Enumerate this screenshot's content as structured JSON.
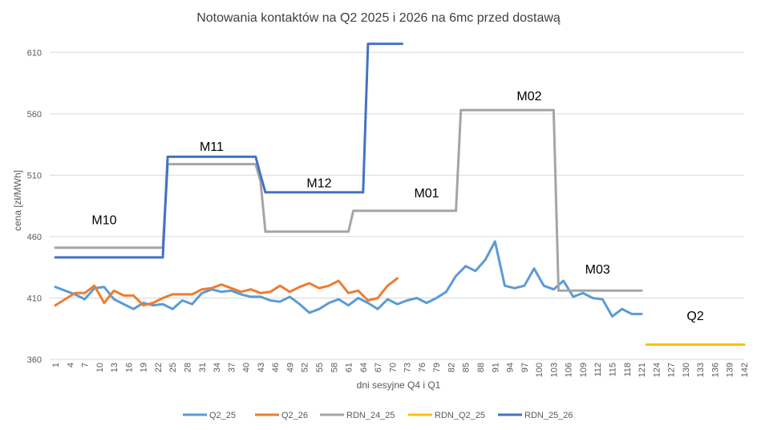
{
  "chart_data": {
    "type": "line",
    "title": "Notowania kontaktów na Q2 2025 i 2026 na 6mc przed dostawą",
    "xlabel": "dni sesyjne Q4 i Q1",
    "ylabel": "cena [zł/MWh]",
    "xlim": [
      1,
      142
    ],
    "ylim": [
      360,
      620
    ],
    "yticks": [
      360,
      410,
      460,
      510,
      560,
      610
    ],
    "xticks": [
      1,
      4,
      7,
      10,
      13,
      16,
      19,
      22,
      25,
      28,
      31,
      34,
      37,
      40,
      43,
      46,
      49,
      52,
      55,
      58,
      61,
      64,
      67,
      70,
      73,
      76,
      79,
      82,
      85,
      88,
      91,
      94,
      97,
      100,
      103,
      106,
      109,
      112,
      115,
      118,
      121,
      124,
      127,
      130,
      133,
      136,
      139,
      142
    ],
    "grid": "horizontal",
    "legend_position": "bottom",
    "series": [
      {
        "name": "Q2_25",
        "color": "#5B9BD5",
        "x": [
          1,
          3,
          5,
          7,
          9,
          11,
          13,
          15,
          17,
          19,
          21,
          23,
          25,
          27,
          29,
          31,
          33,
          35,
          37,
          39,
          41,
          43,
          45,
          47,
          49,
          51,
          53,
          55,
          57,
          59,
          61,
          63,
          65,
          67,
          69,
          71,
          73,
          75,
          77,
          79,
          81,
          83,
          85,
          87,
          89,
          91,
          93,
          95,
          97,
          99,
          101,
          103,
          105,
          107,
          109,
          111,
          113,
          115,
          117,
          119,
          121
        ],
        "values": [
          419,
          416,
          413,
          409,
          418,
          419,
          409,
          405,
          401,
          406,
          404,
          405,
          401,
          408,
          405,
          414,
          417,
          415,
          416,
          413,
          411,
          411,
          408,
          407,
          411,
          405,
          398,
          401,
          406,
          409,
          404,
          410,
          406,
          401,
          409,
          405,
          408,
          410,
          406,
          410,
          415,
          428,
          436,
          432,
          441,
          456,
          420,
          418,
          420,
          434,
          420,
          417,
          424,
          411,
          414,
          410,
          409,
          395,
          401,
          397,
          397
        ]
      },
      {
        "name": "Q2_26",
        "color": "#ED7D31",
        "x": [
          1,
          3,
          5,
          7,
          9,
          11,
          13,
          15,
          17,
          19,
          21,
          23,
          25,
          27,
          29,
          31,
          33,
          35,
          37,
          39,
          41,
          43,
          45,
          47,
          49,
          51,
          53,
          55,
          57,
          59,
          61,
          63,
          65,
          67,
          69,
          71
        ],
        "values": [
          404,
          409,
          414,
          414,
          420,
          406,
          416,
          412,
          412,
          404,
          406,
          410,
          413,
          413,
          413,
          417,
          418,
          421,
          418,
          415,
          417,
          414,
          415,
          420,
          415,
          419,
          422,
          418,
          420,
          424,
          414,
          416,
          408,
          410,
          420,
          426
        ]
      },
      {
        "name": "RDN_24_25",
        "color": "#A5A5A5",
        "x": [
          1,
          22,
          23,
          24,
          42,
          43,
          44,
          61,
          62,
          63,
          82,
          83,
          84,
          102,
          103,
          104,
          121
        ],
        "values": [
          451,
          451,
          451,
          519,
          519,
          505,
          464,
          464,
          481,
          481,
          481,
          481,
          563,
          563,
          563,
          416,
          416
        ]
      },
      {
        "name": "RDN_Q2_25",
        "color": "#FFC000",
        "x": [
          122,
          142
        ],
        "values": [
          372,
          372
        ]
      },
      {
        "name": "RDN_25_26",
        "color": "#4472C4",
        "x": [
          1,
          22,
          23,
          24,
          42,
          43,
          44,
          63,
          64,
          65,
          72
        ],
        "values": [
          443,
          443,
          443,
          525,
          525,
          510,
          496,
          496,
          496,
          617,
          617
        ]
      }
    ],
    "annotations": [
      {
        "text": "M10",
        "x": 11,
        "y": 470
      },
      {
        "text": "M11",
        "x": 33,
        "y": 530
      },
      {
        "text": "M12",
        "x": 55,
        "y": 500
      },
      {
        "text": "M01",
        "x": 77,
        "y": 492
      },
      {
        "text": "M02",
        "x": 98,
        "y": 571
      },
      {
        "text": "M03",
        "x": 112,
        "y": 430
      },
      {
        "text": "Q2",
        "x": 132,
        "y": 392
      }
    ]
  }
}
